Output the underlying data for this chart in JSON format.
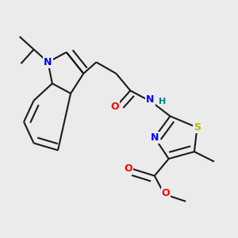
{
  "bg_color": "#ebebeb",
  "bond_color": "#1a1a1a",
  "bond_width": 1.5,
  "atoms": {
    "S": {
      "color": "#b8b800"
    },
    "N": {
      "color": "#0000ff"
    },
    "O": {
      "color": "#ff0000"
    },
    "H": {
      "color": "#008080"
    }
  }
}
